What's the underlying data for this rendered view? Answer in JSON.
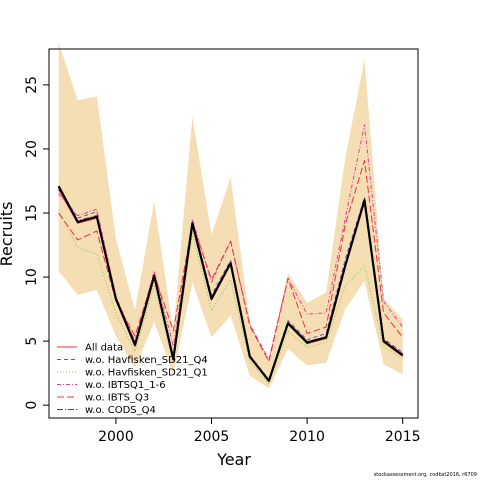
{
  "chart_data": {
    "type": "line",
    "xlabel": "Year",
    "ylabel": "Recruits",
    "xlim": [
      1996.5,
      2015.8
    ],
    "ylim": [
      -1,
      27.8
    ],
    "xticks": [
      2000,
      2005,
      2010,
      2015
    ],
    "yticks": [
      0,
      5,
      10,
      15,
      20,
      25
    ],
    "grid": false,
    "legend_position": "bottom-left",
    "x": [
      1997,
      1998,
      1999,
      2000,
      2001,
      2002,
      2003,
      2004,
      2005,
      2006,
      2007,
      2008,
      2009,
      2010,
      2011,
      2012,
      2013,
      2014,
      2015
    ],
    "confidence_band": {
      "color": "#F5DEB3",
      "lower": [
        10.5,
        8.6,
        9.0,
        5.4,
        2.9,
        6.5,
        2.4,
        9.6,
        5.3,
        7.0,
        2.3,
        1.3,
        4.4,
        3.1,
        3.3,
        7.5,
        9.7,
        3.2,
        2.4
      ],
      "upper": [
        28.3,
        23.8,
        24.1,
        13.0,
        7.4,
        15.9,
        5.7,
        22.5,
        13.3,
        17.8,
        6.5,
        3.5,
        10.3,
        8.0,
        8.8,
        19.3,
        27.0,
        8.3,
        6.7
      ]
    },
    "series": [
      {
        "name": "",
        "color": "#000000",
        "width": 2.2,
        "dash": "",
        "values": [
          17.1,
          14.3,
          14.7,
          8.3,
          4.7,
          10.1,
          3.6,
          14.2,
          8.3,
          11.1,
          3.8,
          1.9,
          6.4,
          4.9,
          5.3,
          10.9,
          16.0,
          5.0,
          3.9
        ]
      },
      {
        "name": "All data",
        "color": "#E8333A",
        "width": 1,
        "dash": "",
        "values": [
          16.8,
          14.2,
          14.6,
          8.2,
          4.6,
          10.0,
          3.5,
          14.1,
          8.2,
          11.0,
          3.7,
          1.9,
          6.3,
          4.8,
          5.2,
          10.8,
          15.9,
          4.9,
          3.8
        ]
      },
      {
        "name": "w.o. Havfisken_SD21_Q4",
        "color": "#7B4A9E",
        "width": 1,
        "dash": "4,3",
        "values": [
          16.9,
          14.6,
          15.1,
          8.4,
          4.9,
          10.3,
          3.8,
          14.4,
          8.6,
          11.3,
          3.9,
          2.0,
          6.6,
          5.1,
          5.6,
          11.4,
          16.2,
          5.2,
          4.1
        ]
      },
      {
        "name": "w.o. Havfisken_SD21_Q1",
        "color": "#7EC850",
        "width": 1,
        "dash": "1,2",
        "values": [
          15.2,
          12.3,
          11.8,
          7.2,
          4.2,
          9.4,
          3.3,
          13.4,
          7.4,
          9.8,
          3.4,
          1.7,
          5.8,
          4.5,
          4.9,
          9.3,
          10.9,
          4.6,
          3.6
        ]
      },
      {
        "name": "w.o. IBTSQ1_1-6",
        "color": "#E040A0",
        "width": 1,
        "dash": "4,2,1,2",
        "values": [
          16.5,
          14.8,
          15.3,
          8.5,
          5.0,
          10.5,
          4.6,
          14.5,
          9.6,
          12.8,
          6.3,
          3.6,
          9.9,
          7.1,
          7.2,
          14.6,
          21.9,
          8.1,
          6.1
        ]
      },
      {
        "name": "w.o. IBTS_Q3",
        "color": "#E8333A",
        "width": 1,
        "dash": "7,3",
        "values": [
          15.0,
          12.9,
          13.6,
          8.1,
          5.4,
          10.2,
          5.8,
          14.2,
          9.8,
          12.8,
          6.2,
          3.4,
          9.9,
          5.6,
          6.1,
          14.1,
          19.1,
          7.2,
          5.3
        ]
      },
      {
        "name": "w.o. CODS_Q4",
        "color": "#7B1F6A",
        "width": 1,
        "dash": "6,2,1,2",
        "values": [
          17.0,
          14.4,
          14.8,
          8.2,
          4.7,
          10.0,
          3.6,
          14.2,
          8.4,
          11.1,
          3.8,
          1.9,
          6.4,
          4.8,
          5.3,
          11.0,
          16.1,
          5.1,
          4.0
        ]
      }
    ]
  },
  "footer": {
    "credit": "stockassessment.org, codkat2016, r6709"
  }
}
